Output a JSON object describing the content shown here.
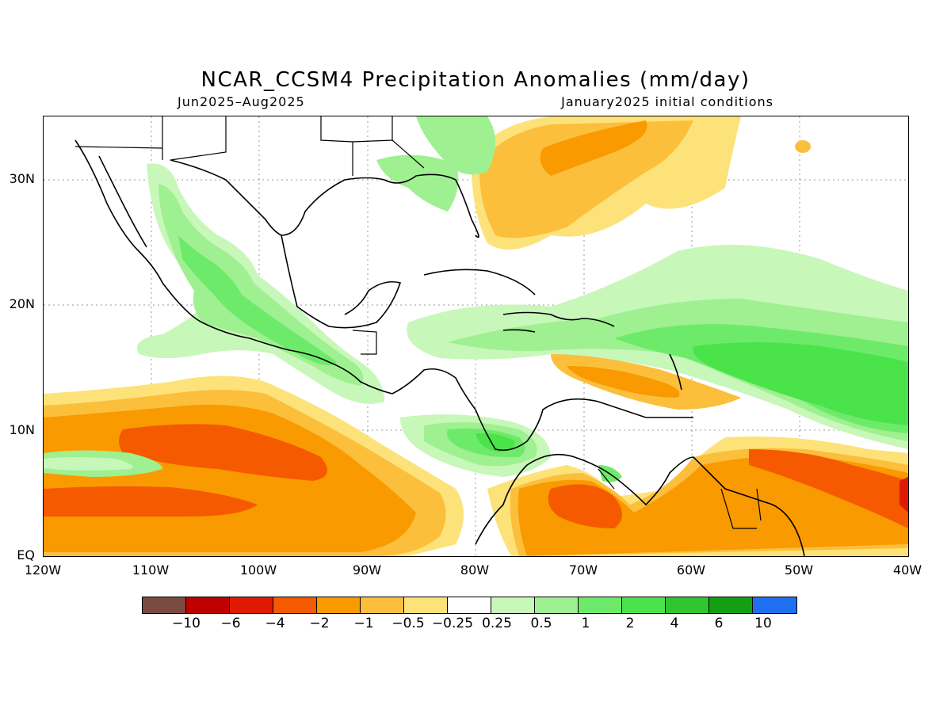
{
  "title": "NCAR_CCSM4 Precipitation Anomalies (mm/day)",
  "subtitle_left": "Jun2025–Aug2025",
  "subtitle_right": "January2025 initial conditions",
  "y_ticks": [
    "30N",
    "20N",
    "10N",
    "EQ"
  ],
  "x_ticks": [
    "120W",
    "110W",
    "100W",
    "90W",
    "80W",
    "70W",
    "60W",
    "50W",
    "40W"
  ],
  "colorbar": {
    "colors": [
      "#7a4b3e",
      "#c00000",
      "#e01a00",
      "#f55a00",
      "#f99a00",
      "#fcbf3c",
      "#fde27a",
      "#ffffff",
      "#c7f7b9",
      "#9ef090",
      "#6eea6a",
      "#4ae44a",
      "#2fc62f",
      "#12a012",
      "#1f6ff0"
    ],
    "labels": [
      "−10",
      "−6",
      "−4",
      "−2",
      "−1",
      "−0.5",
      "−0.25",
      "0.25",
      "0.5",
      "1",
      "2",
      "4",
      "6",
      "10"
    ]
  }
}
